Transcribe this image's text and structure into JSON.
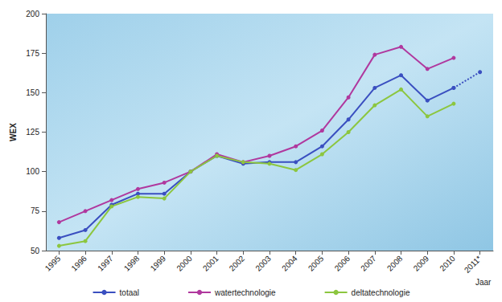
{
  "chart_data": {
    "type": "line",
    "x_label": "Jaar",
    "y_label": "WEX",
    "categories": [
      "1995",
      "1996",
      "1997",
      "1998",
      "1999",
      "2000",
      "2001",
      "2002",
      "2003",
      "2004",
      "2005",
      "2006",
      "2007",
      "2008",
      "2009",
      "2010",
      "2011*"
    ],
    "series": [
      {
        "name": "totaal",
        "color": "#3a4fc0",
        "marker": "circle",
        "values": [
          58,
          63,
          79,
          86,
          86,
          100,
          110,
          105,
          106,
          106,
          116,
          133,
          153,
          161,
          145,
          153,
          163
        ]
      },
      {
        "name": "watertechnologie",
        "color": "#b0389e",
        "marker": "circle",
        "values": [
          68,
          75,
          82,
          89,
          93,
          100,
          111,
          106,
          110,
          116,
          126,
          147,
          174,
          179,
          165,
          172,
          null
        ]
      },
      {
        "name": "deltatechnologie",
        "color": "#8cc63f",
        "marker": "circle",
        "values": [
          53,
          56,
          78,
          84,
          83,
          100,
          110,
          106,
          105,
          101,
          111,
          125,
          142,
          152,
          135,
          143,
          null
        ]
      }
    ],
    "ylim": [
      50,
      200
    ],
    "yticks": [
      50,
      75,
      100,
      125,
      150,
      175,
      200
    ],
    "grid": false,
    "legend": "bottom"
  }
}
